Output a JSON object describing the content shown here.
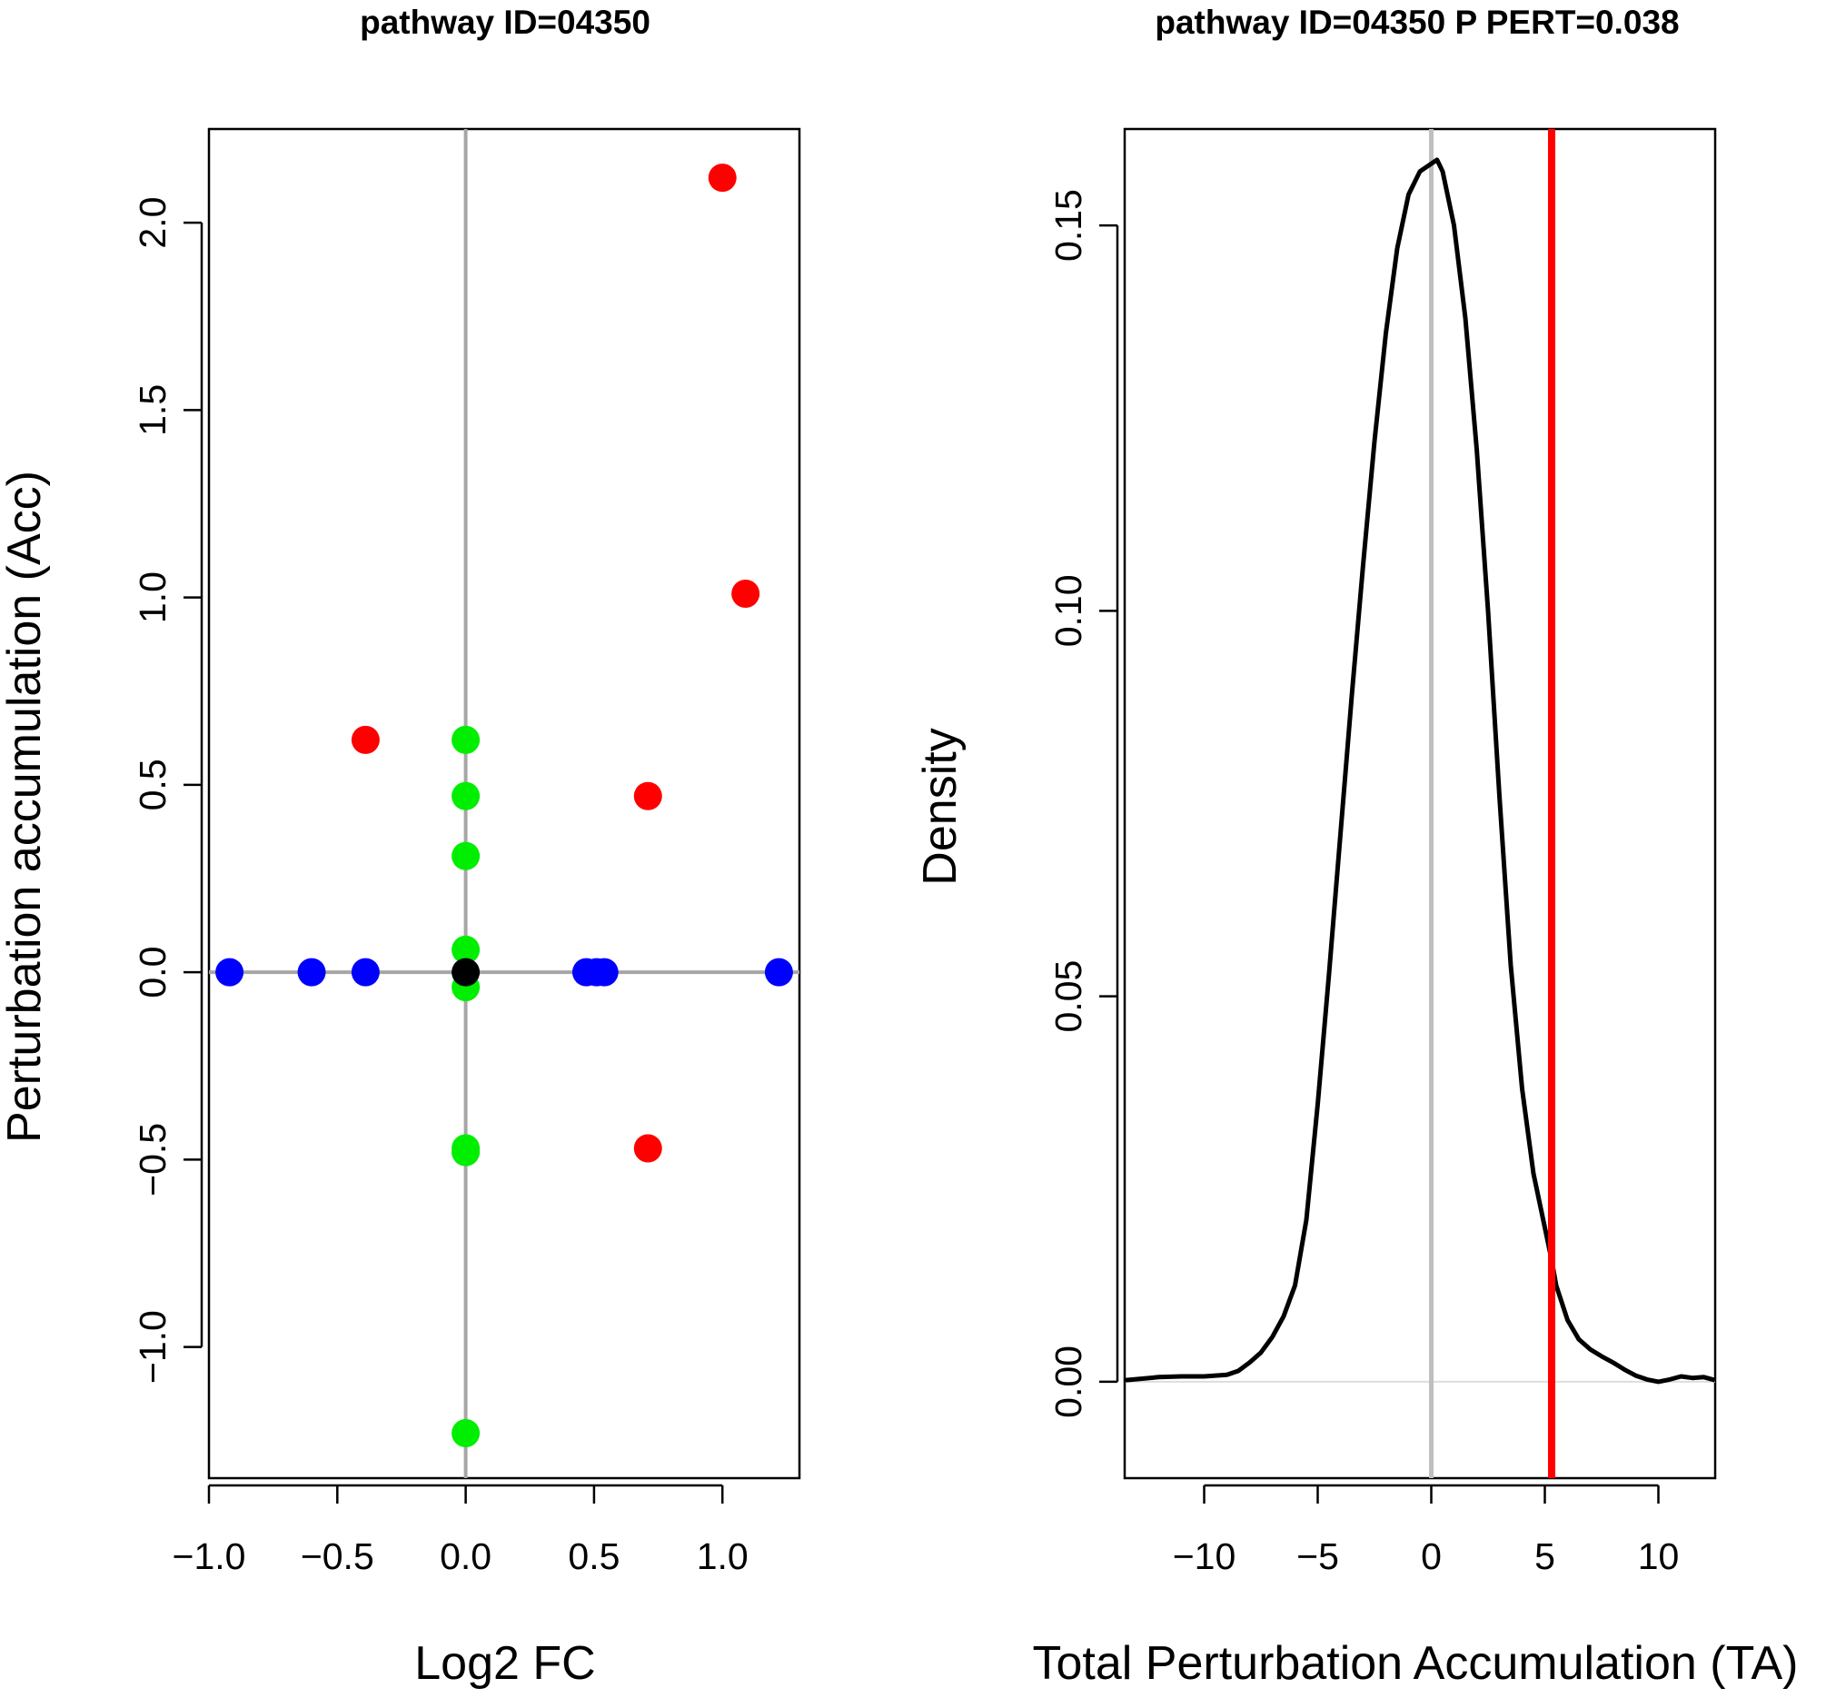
{
  "chart_data": [
    {
      "type": "scatter",
      "title": "pathway ID=04350",
      "xlabel": "Log2 FC",
      "ylabel": "Perturbation accumulation (Acc)",
      "xlim": [
        -1.0,
        1.3
      ],
      "ylim": [
        -1.35,
        2.25
      ],
      "xticks": [
        -1.0,
        -0.5,
        0.0,
        0.5,
        1.0
      ],
      "xtick_labels": [
        "−1.0",
        "−0.5",
        "0.0",
        "0.5",
        "1.0"
      ],
      "yticks": [
        -1.0,
        -0.5,
        0.0,
        0.5,
        1.0,
        1.5,
        2.0
      ],
      "ytick_labels": [
        "−1.0",
        "−0.5",
        "0.0",
        "0.5",
        "1.0",
        "1.5",
        "2.0"
      ],
      "reference_lines": {
        "x": 0,
        "y": 0,
        "color": "#a6a6a6"
      },
      "grid": false,
      "colors": {
        "red": "#ff0000",
        "green": "#00ee00",
        "blue": "#0000ff",
        "black": "#000000"
      },
      "series": [
        {
          "color_key": "red",
          "points": [
            [
              1.0,
              2.12
            ],
            [
              1.09,
              1.01
            ],
            [
              -0.39,
              0.62
            ],
            [
              0.71,
              0.47
            ],
            [
              0.71,
              -0.47
            ]
          ]
        },
        {
          "color_key": "green",
          "points": [
            [
              0,
              0.62
            ],
            [
              0,
              0.47
            ],
            [
              0,
              0.31
            ],
            [
              0,
              0.06
            ],
            [
              0,
              -0.04
            ],
            [
              0,
              -0.47
            ],
            [
              0,
              -0.48
            ],
            [
              0,
              -1.23
            ]
          ]
        },
        {
          "color_key": "blue",
          "points": [
            [
              -0.92,
              0
            ],
            [
              -0.6,
              0
            ],
            [
              -0.39,
              0
            ],
            [
              0.47,
              0
            ],
            [
              0.51,
              0
            ],
            [
              0.54,
              0
            ],
            [
              1.22,
              0
            ]
          ]
        },
        {
          "color_key": "black",
          "points": [
            [
              0,
              0
            ]
          ]
        }
      ]
    },
    {
      "type": "line",
      "title": "pathway ID=04350  P PERT=0.038",
      "xlabel": "Total Perturbation Accumulation (TA)",
      "ylabel": "Density",
      "xlim": [
        -13.5,
        12.5
      ],
      "ylim": [
        -0.0125,
        0.1625
      ],
      "xticks": [
        -10,
        -5,
        0,
        5,
        10
      ],
      "xtick_labels": [
        "−10",
        "−5",
        "0",
        "5",
        "10"
      ],
      "yticks": [
        0.0,
        0.05,
        0.1,
        0.15
      ],
      "ytick_labels": [
        "0.00",
        "0.05",
        "0.10",
        "0.15"
      ],
      "grid": false,
      "reference_lines": {
        "x": 0,
        "x_color": "#bfbfbf",
        "y": 0,
        "y_color": "#dddddd"
      },
      "observed_line": {
        "x": 5.3,
        "color": "#ff0000"
      },
      "curve_color": "#000000",
      "x": [
        -13.5,
        -12,
        -11,
        -10,
        -9,
        -8.5,
        -8,
        -7.5,
        -7,
        -6.5,
        -6,
        -5.5,
        -5,
        -4.5,
        -4,
        -3.5,
        -3,
        -2.5,
        -2,
        -1.5,
        -1,
        -0.5,
        0,
        0.25,
        0.5,
        1,
        1.5,
        2,
        2.5,
        3,
        3.5,
        4,
        4.5,
        5,
        5.3,
        5.5,
        6,
        6.5,
        7,
        7.5,
        8,
        8.5,
        9,
        9.5,
        10,
        10.5,
        11,
        11.5,
        12,
        12.5
      ],
      "y": [
        0.0002,
        0.0006,
        0.0007,
        0.0007,
        0.0009,
        0.0014,
        0.0025,
        0.0038,
        0.0058,
        0.0085,
        0.0125,
        0.021,
        0.036,
        0.053,
        0.071,
        0.089,
        0.106,
        0.122,
        0.136,
        0.147,
        0.154,
        0.157,
        0.158,
        0.1585,
        0.157,
        0.15,
        0.138,
        0.121,
        0.1,
        0.076,
        0.054,
        0.038,
        0.027,
        0.02,
        0.0158,
        0.0125,
        0.008,
        0.0055,
        0.0042,
        0.0033,
        0.0025,
        0.0016,
        0.0008,
        0.0003,
        0.0,
        0.0003,
        0.0007,
        0.0005,
        0.0006,
        0.0002
      ]
    }
  ]
}
